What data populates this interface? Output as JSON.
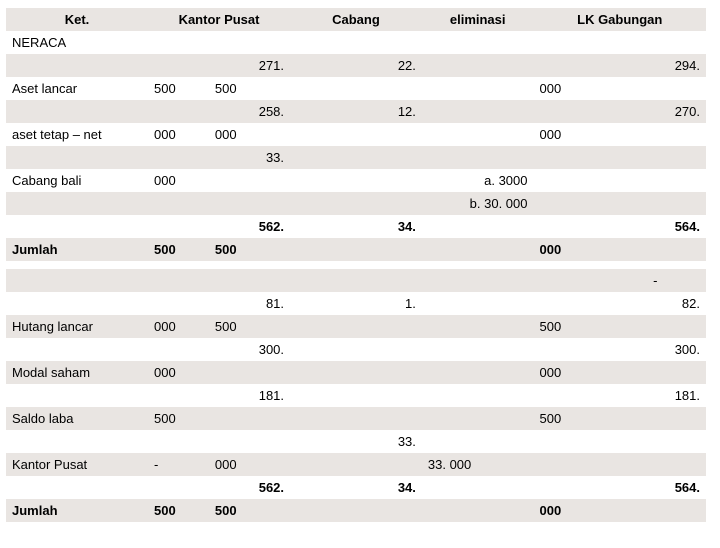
{
  "header": {
    "ket": "Ket.",
    "kantor_pusat": "Kantor Pusat",
    "cabang": "Cabang",
    "eliminasi": "eliminasi",
    "lk_gabungan": "LK Gabungan"
  },
  "section1": "NERACA",
  "rows": {
    "aset_lancar": {
      "label": "Aset lancar",
      "kp_a": "500",
      "kp_b_top": "271.",
      "kp_b_bot": "500",
      "cab_top": "22.",
      "lk_a": "000",
      "lk_b_top": "294."
    },
    "aset_tetap": {
      "label": "aset tetap – net",
      "kp_a": "000",
      "kp_b_top": "258.",
      "kp_b_bot": "000",
      "cab_top": "12.",
      "lk_a": "000",
      "lk_b_top": "270."
    },
    "cabang_bali": {
      "label": "Cabang bali",
      "kp_a": "000",
      "kp_b_top": "33.",
      "elim_a": "a. 3000",
      "elim_b": "b. 30. 000"
    },
    "jumlah1": {
      "label": "Jumlah",
      "kp_a": "500",
      "kp_b_top": "562.",
      "kp_b_bot": "500",
      "cab_top": "34.",
      "lk_a": "000",
      "lk_b_top": "564."
    },
    "dash": {
      "lk_b_top": "-"
    },
    "hutang_lancar": {
      "label": "Hutang lancar",
      "kp_a": "000",
      "kp_b_top": "81.",
      "kp_b_bot": "500",
      "cab_top": "1.",
      "lk_a": "500",
      "lk_b_top": "82."
    },
    "modal_saham": {
      "label": "Modal saham",
      "kp_a": "000",
      "kp_b_top": "300.",
      "lk_a": "000",
      "lk_b_top": "300."
    },
    "saldo_laba": {
      "label": "Saldo laba",
      "kp_a": "500",
      "kp_b_top": "181.",
      "lk_a": "500",
      "lk_b_top": "181."
    },
    "kantor_pusat_row": {
      "label": "Kantor Pusat",
      "kp_a": "-",
      "kp_b_bot": "000",
      "cab_top": "33.",
      "elim": "33. 000"
    },
    "jumlah2": {
      "label": "Jumlah",
      "kp_a": "500",
      "kp_b_top": "562.",
      "kp_b_bot": "500",
      "cab_top": "34.",
      "lk_a": "000",
      "lk_b_top": "564."
    }
  },
  "colors": {
    "stripe": "#e9e5e2",
    "bg": "#ffffff",
    "text": "#000000"
  }
}
